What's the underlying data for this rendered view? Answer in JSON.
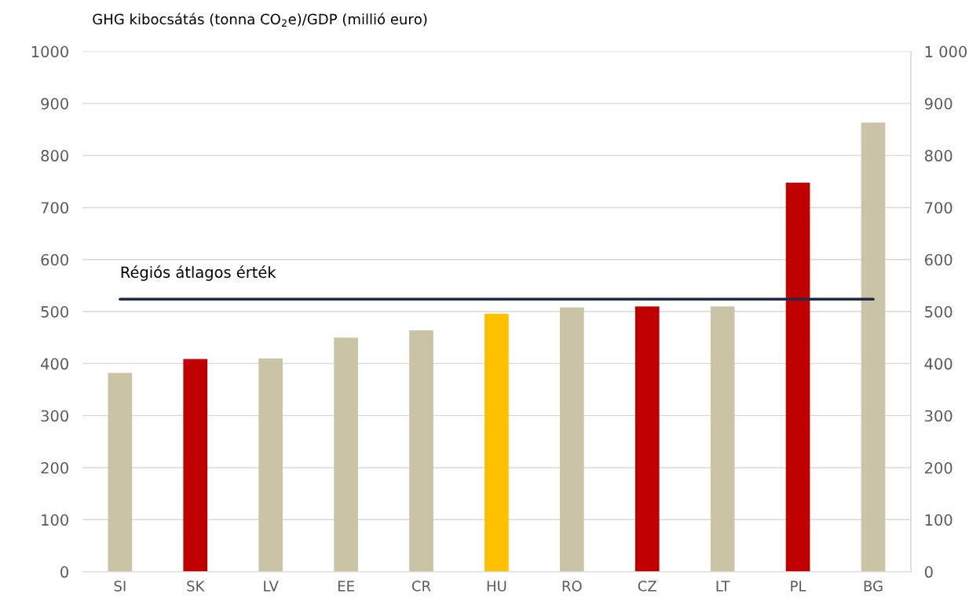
{
  "chart_data": {
    "type": "bar",
    "ylabel": "GHG kibocsátás (tonna CO$_{2}$e)/GDP (millió euro)",
    "categories": [
      "SI",
      "SK",
      "LV",
      "EE",
      "CR",
      "HU",
      "RO",
      "CZ",
      "LT",
      "PL",
      "BG"
    ],
    "values": [
      382,
      409,
      410,
      450,
      464,
      496,
      508,
      510,
      510,
      748,
      863
    ],
    "colors": [
      "#cbc3a5",
      "#c00000",
      "#cbc3a5",
      "#cbc3a5",
      "#cbc3a5",
      "#ffc000",
      "#cbc3a5",
      "#c00000",
      "#cbc3a5",
      "#c00000",
      "#cbc3a5"
    ],
    "ylim": [
      0,
      1000
    ],
    "yticks": [
      0,
      100,
      200,
      300,
      400,
      500,
      600,
      700,
      800,
      900,
      1000
    ],
    "y2lim": [
      0,
      1000
    ],
    "y2ticks": [
      0,
      100,
      200,
      300,
      400,
      500,
      600,
      700,
      800,
      900,
      {
        "value": 1000,
        "label": "1 000"
      }
    ],
    "ref_lines": [
      {
        "axis": "y",
        "value": 524,
        "label": "Régiós átlagos érték",
        "color": "#1f2a4a",
        "line_style": "solid"
      }
    ],
    "grid": "y",
    "legend": false
  }
}
